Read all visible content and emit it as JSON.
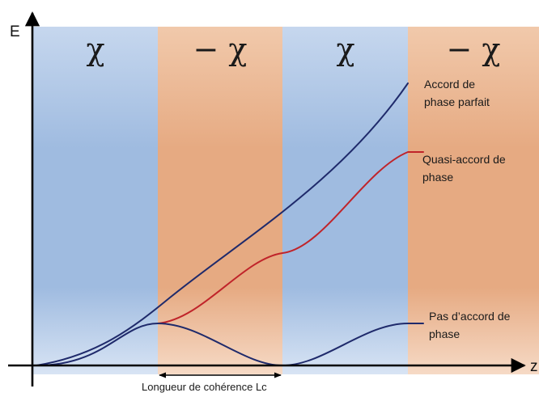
{
  "axes": {
    "y_letter": "E",
    "x_letter": "z"
  },
  "regions": [
    {
      "symbol": "χ",
      "color": "blue"
    },
    {
      "symbol": "− χ",
      "color": "orange"
    },
    {
      "symbol": "χ",
      "color": "blue"
    },
    {
      "symbol": "− χ",
      "color": "orange"
    }
  ],
  "labels": {
    "perfect": [
      "Accord de",
      "phase parfait"
    ],
    "quasi": [
      "Quasi-accord de",
      "phase"
    ],
    "none": [
      "Pas d’accord de",
      "phase"
    ]
  },
  "coherence_length_label": "Longueur de cohérence Lc",
  "colors": {
    "blue_region": "#a9c3e4",
    "orange_region": "#eab48e",
    "perfect_curve": "#1f2a6b",
    "quasi_curve": "#c0242a",
    "none_curve": "#1f2a6b",
    "axis": "#000000"
  }
}
